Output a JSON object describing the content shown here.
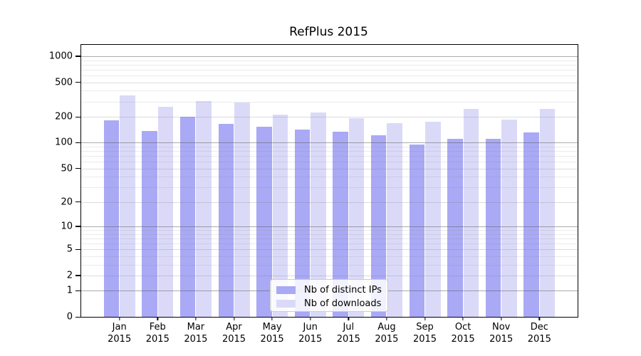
{
  "title": "RefPlus 2015",
  "chart_data": {
    "type": "bar",
    "title": "RefPlus 2015",
    "y_scale": "log10(1+x)",
    "ylim": [
      0,
      1380
    ],
    "grid": "horizontal-major-and-minor",
    "legend_position": "inside-bottom-center",
    "year": "2015",
    "months": [
      "Jan",
      "Feb",
      "Mar",
      "Apr",
      "May",
      "Jun",
      "Jul",
      "Aug",
      "Sep",
      "Oct",
      "Nov",
      "Dec"
    ],
    "y_ticks": [
      0,
      1,
      2,
      5,
      10,
      20,
      50,
      100,
      200,
      500,
      1000
    ],
    "y_tick_labels": [
      "0",
      "1",
      "2",
      "5",
      "10",
      "20",
      "50",
      "100",
      "200",
      "500",
      "1000"
    ],
    "grid_decade_values": [
      1,
      10,
      100,
      1000
    ],
    "grid_mid_values": [
      2,
      5,
      20,
      50,
      200,
      500
    ],
    "grid_minor_values": [
      3,
      4,
      6,
      7,
      8,
      9,
      30,
      40,
      60,
      70,
      80,
      90,
      300,
      400,
      600,
      700,
      800,
      900
    ],
    "series": [
      {
        "name": "Nb of distinct IPs",
        "color": "#a9a9f5",
        "values": [
          182,
          137,
          200,
          167,
          153,
          141,
          134,
          122,
          96,
          111,
          112,
          133
        ]
      },
      {
        "name": "Nb of downloads",
        "color": "#dadaf8",
        "values": [
          353,
          261,
          302,
          292,
          212,
          225,
          192,
          170,
          176,
          246,
          187,
          248
        ]
      }
    ]
  }
}
